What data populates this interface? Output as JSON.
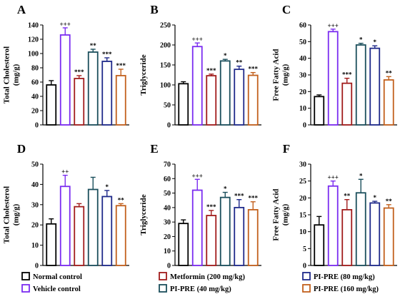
{
  "legend": [
    {
      "label": "Normal control",
      "color": "#000000"
    },
    {
      "label": "Vehicle control",
      "color": "#7b2cf0"
    },
    {
      "label": "Metformin (200 mg/kg)",
      "color": "#a11c1c"
    },
    {
      "label": "PI-PRE (40 mg/kg)",
      "color": "#1b4f5c"
    },
    {
      "label": "PI-PRE (80 mg/kg)",
      "color": "#1f2a8a"
    },
    {
      "label": "PI-PRE (160 mg/kg)",
      "color": "#c2601d"
    }
  ],
  "chart_data": [
    {
      "panel": "A",
      "type": "bar",
      "ylabel": [
        "Total Cholesterol",
        "(mg/g)"
      ],
      "ylim": [
        0,
        140
      ],
      "yticks": [
        0,
        20,
        40,
        60,
        80,
        100,
        120,
        140
      ],
      "values": [
        56,
        126,
        65,
        102,
        89,
        69
      ],
      "errors": [
        6,
        10,
        4,
        4,
        5,
        9
      ],
      "significance": [
        "",
        "+++",
        "***",
        "**",
        "***",
        "***"
      ]
    },
    {
      "panel": "B",
      "type": "bar",
      "ylabel": [
        "Triglyceride"
      ],
      "ylim": [
        0,
        250
      ],
      "yticks": [
        0,
        50,
        100,
        150,
        200,
        250
      ],
      "values": [
        103,
        196,
        123,
        160,
        139,
        124
      ],
      "errors": [
        5,
        9,
        4,
        4,
        8,
        7
      ],
      "significance": [
        "",
        "+++",
        "***",
        "*",
        "**",
        "***"
      ]
    },
    {
      "panel": "C",
      "type": "bar",
      "ylabel": [
        "Free Fatty Acid",
        "(mg/g)"
      ],
      "ylim": [
        0,
        60
      ],
      "yticks": [
        0,
        10,
        20,
        30,
        40,
        50,
        60
      ],
      "values": [
        17,
        56,
        25,
        48,
        46,
        27
      ],
      "errors": [
        1,
        1.5,
        3,
        1,
        1.5,
        2
      ],
      "significance": [
        "",
        "+++",
        "***",
        "*",
        "*",
        "**"
      ]
    },
    {
      "panel": "D",
      "type": "bar",
      "ylabel": [
        "Total Cholesterol",
        "(mg/g)"
      ],
      "ylim": [
        0,
        50
      ],
      "yticks": [
        0,
        10,
        20,
        30,
        40,
        50
      ],
      "values": [
        20.5,
        39,
        29,
        37.5,
        34,
        29.5
      ],
      "errors": [
        2.5,
        5.5,
        1.5,
        6,
        3,
        1
      ],
      "significance": [
        "",
        "++",
        "",
        "",
        "*",
        "**"
      ]
    },
    {
      "panel": "E",
      "type": "bar",
      "ylabel": [
        "Triglyceride"
      ],
      "ylim": [
        0,
        70
      ],
      "yticks": [
        0,
        10,
        20,
        30,
        40,
        50,
        60,
        70
      ],
      "values": [
        29,
        52,
        34.5,
        47,
        40,
        38.5
      ],
      "errors": [
        2.5,
        7.5,
        3.5,
        3.5,
        5.5,
        5.5
      ],
      "significance": [
        "",
        "+++",
        "***",
        "*",
        "***",
        "***"
      ]
    },
    {
      "panel": "F",
      "type": "bar",
      "ylabel": [
        "Free Fatty Acid",
        "(mg/g)"
      ],
      "ylim": [
        0,
        30
      ],
      "yticks": [
        0,
        5,
        10,
        15,
        20,
        25,
        30
      ],
      "values": [
        12,
        23.5,
        16.5,
        21.5,
        18.5,
        17
      ],
      "errors": [
        2.5,
        1.5,
        3,
        4,
        0.5,
        1
      ],
      "significance": [
        "",
        "+++",
        "**",
        "*",
        "*",
        "**"
      ]
    }
  ]
}
